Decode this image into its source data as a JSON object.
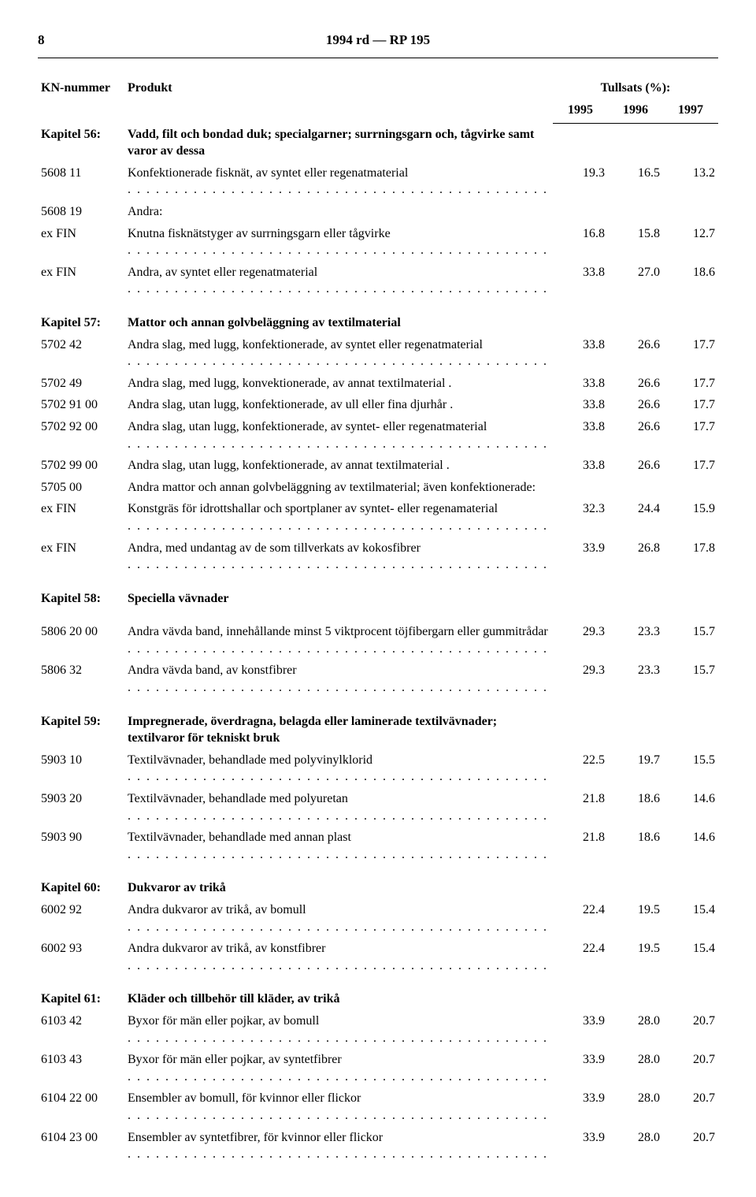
{
  "header": {
    "page_number": "8",
    "doc_title": "1994 rd — RP 195"
  },
  "columns": {
    "kn": "KN-nummer",
    "produkt": "Produkt",
    "tullsats": "Tullsats (%):",
    "y1995": "1995",
    "y1996": "1996",
    "y1997": "1997"
  },
  "rows": [
    {
      "kn": "Kapitel 56:",
      "prod": "Vadd, filt och bondad duk; specialgarner; surrningsgarn och, tågvirke samt varor av dessa",
      "bold": true
    },
    {
      "kn": "5608 11",
      "prod": "Konfektionerade fisknät, av syntet eller regenatmaterial",
      "dots": true,
      "v": [
        "19.3",
        "16.5",
        "13.2"
      ]
    },
    {
      "kn": "5608 19",
      "prod": "Andra:"
    },
    {
      "kn": "ex FIN",
      "prod": "Knutna fisknätstyger av surrningsgarn eller tågvirke",
      "dots": true,
      "v": [
        "16.8",
        "15.8",
        "12.7"
      ]
    },
    {
      "kn": "ex FIN",
      "prod": "Andra, av syntet eller regenatmaterial",
      "dots": true,
      "v": [
        "33.8",
        "27.0",
        "18.6"
      ]
    },
    {
      "kn": "Kapitel 57:",
      "prod": "Mattor och annan golvbeläggning av textilmaterial",
      "bold": true,
      "gap": true
    },
    {
      "kn": "5702 42",
      "prod": "Andra slag, med lugg, konfektionerade, av syntet eller regenatmaterial",
      "dots": true,
      "v": [
        "33.8",
        "26.6",
        "17.7"
      ]
    },
    {
      "kn": "5702 49",
      "prod": "Andra slag, med lugg, konvektionerade, av annat textilmaterial .",
      "v": [
        "33.8",
        "26.6",
        "17.7"
      ]
    },
    {
      "kn": "5702 91 00",
      "prod": "Andra slag, utan lugg, konfektionerade, av ull eller fina djurhår .",
      "v": [
        "33.8",
        "26.6",
        "17.7"
      ]
    },
    {
      "kn": "5702 92 00",
      "prod": "Andra slag, utan lugg, konfektionerade, av syntet- eller regenatmaterial",
      "dots": true,
      "v": [
        "33.8",
        "26.6",
        "17.7"
      ]
    },
    {
      "kn": "5702 99 00",
      "prod": "Andra slag, utan lugg, konfektionerade, av annat textilmaterial .",
      "v": [
        "33.8",
        "26.6",
        "17.7"
      ]
    },
    {
      "kn": "5705 00",
      "prod": "Andra mattor och annan golvbeläggning av textilmaterial; även konfektionerade:"
    },
    {
      "kn": "ex FIN",
      "prod": "Konstgräs för idrottshallar och sportplaner av syntet- eller regenamaterial",
      "dots": true,
      "v": [
        "32.3",
        "24.4",
        "15.9"
      ]
    },
    {
      "kn": "ex FIN",
      "prod": "Andra, med undantag av de som tillverkats av kokosfibrer",
      "dots": true,
      "v": [
        "33.9",
        "26.8",
        "17.8"
      ]
    },
    {
      "kn": "Kapitel 58:",
      "prod": "Speciella vävnader",
      "bold": true,
      "gap": true
    },
    {
      "kn": "5806 20 00",
      "prod": "Andra vävda band, innehållande minst 5 viktprocent töjfibergarn eller gummitrådar",
      "dots": true,
      "v": [
        "29.3",
        "23.3",
        "15.7"
      ],
      "gap": true
    },
    {
      "kn": "5806 32",
      "prod": "Andra vävda band, av konstfibrer",
      "dots": true,
      "v": [
        "29.3",
        "23.3",
        "15.7"
      ]
    },
    {
      "kn": "Kapitel 59:",
      "prod": "Impregnerade, överdragna, belagda eller laminerade textilvävnader; textilvaror för tekniskt bruk",
      "bold": true,
      "gap": true
    },
    {
      "kn": "5903 10",
      "prod": "Textilvävnader, behandlade med polyvinylklorid",
      "dots": true,
      "v": [
        "22.5",
        "19.7",
        "15.5"
      ]
    },
    {
      "kn": "5903 20",
      "prod": "Textilvävnader, behandlade med polyuretan",
      "dots": true,
      "v": [
        "21.8",
        "18.6",
        "14.6"
      ]
    },
    {
      "kn": "5903 90",
      "prod": "Textilvävnader, behandlade med annan plast",
      "dots": true,
      "v": [
        "21.8",
        "18.6",
        "14.6"
      ]
    },
    {
      "kn": "Kapitel 60:",
      "prod": "Dukvaror av trikå",
      "bold": true,
      "gap": true
    },
    {
      "kn": "6002 92",
      "prod": "Andra dukvaror av trikå, av bomull",
      "dots": true,
      "v": [
        "22.4",
        "19.5",
        "15.4"
      ]
    },
    {
      "kn": "6002 93",
      "prod": "Andra dukvaror av trikå, av konstfibrer",
      "dots": true,
      "v": [
        "22.4",
        "19.5",
        "15.4"
      ]
    },
    {
      "kn": "Kapitel 61:",
      "prod": "Kläder och tillbehör till kläder, av trikå",
      "bold": true,
      "gap": true
    },
    {
      "kn": "6103 42",
      "prod": "Byxor för män eller pojkar, av bomull",
      "dots": true,
      "v": [
        "33.9",
        "28.0",
        "20.7"
      ]
    },
    {
      "kn": "6103 43",
      "prod": "Byxor för män eller pojkar, av syntetfibrer",
      "dots": true,
      "v": [
        "33.9",
        "28.0",
        "20.7"
      ]
    },
    {
      "kn": "6104 22 00",
      "prod": "Ensembler av bomull, för kvinnor eller flickor",
      "dots": true,
      "v": [
        "33.9",
        "28.0",
        "20.7"
      ]
    },
    {
      "kn": "6104 23 00",
      "prod": "Ensembler av syntetfibrer, för kvinnor eller flickor",
      "dots": true,
      "v": [
        "33.9",
        "28.0",
        "20.7"
      ]
    }
  ]
}
